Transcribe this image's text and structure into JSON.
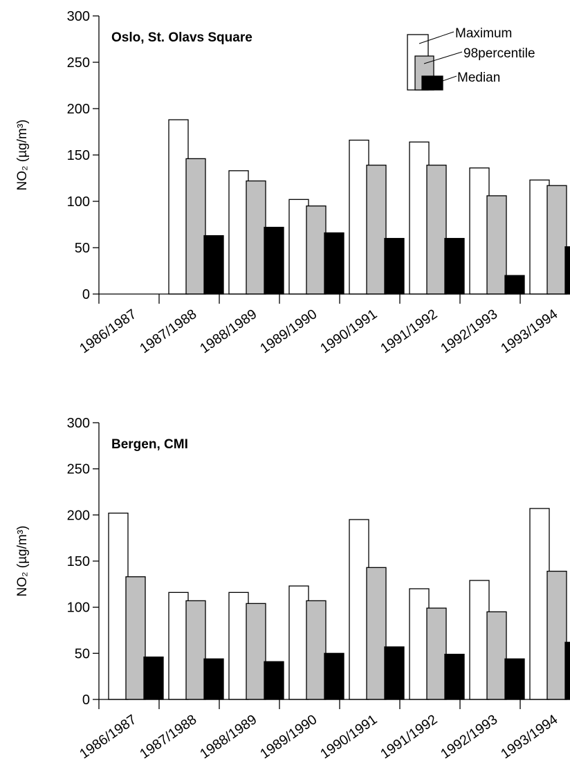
{
  "chart_data": [
    {
      "type": "bar",
      "title": "Oslo, St. Olavs Square",
      "ylabel": "NO₂ (µg/m³)",
      "ylim": [
        0,
        300
      ],
      "yticks": [
        0,
        50,
        100,
        150,
        200,
        250,
        300
      ],
      "categories": [
        "1986/1987",
        "1987/1988",
        "1988/1989",
        "1989/1990",
        "1990/1991",
        "1991/1992",
        "1992/1993",
        "1993/1994"
      ],
      "series": [
        {
          "name": "Maximum",
          "color": "#ffffff",
          "values": [
            null,
            188,
            133,
            102,
            166,
            164,
            136,
            123
          ]
        },
        {
          "name": "98percentile",
          "color": "#c0c0c0",
          "values": [
            null,
            146,
            122,
            95,
            139,
            139,
            106,
            117
          ]
        },
        {
          "name": "Median",
          "color": "#000000",
          "values": [
            null,
            63,
            72,
            66,
            60,
            60,
            20,
            51
          ]
        }
      ],
      "legend": {
        "position": "top-right",
        "items": [
          "Maximum",
          "98percentile",
          "Median"
        ]
      },
      "grid": false
    },
    {
      "type": "bar",
      "title": "Bergen, CMI",
      "ylabel": "NO₂ (µg/m³)",
      "ylim": [
        0,
        300
      ],
      "yticks": [
        0,
        50,
        100,
        150,
        200,
        250,
        300
      ],
      "categories": [
        "1986/1987",
        "1987/1988",
        "1988/1989",
        "1989/1990",
        "1990/1991",
        "1991/1992",
        "1992/1993",
        "1993/1994"
      ],
      "series": [
        {
          "name": "Maximum",
          "color": "#ffffff",
          "values": [
            202,
            116,
            116,
            123,
            195,
            120,
            129,
            207
          ]
        },
        {
          "name": "98percentile",
          "color": "#c0c0c0",
          "values": [
            133,
            107,
            104,
            107,
            143,
            99,
            95,
            139
          ]
        },
        {
          "name": "Median",
          "color": "#000000",
          "values": [
            46,
            44,
            41,
            50,
            57,
            49,
            44,
            62
          ]
        }
      ],
      "grid": false
    }
  ]
}
